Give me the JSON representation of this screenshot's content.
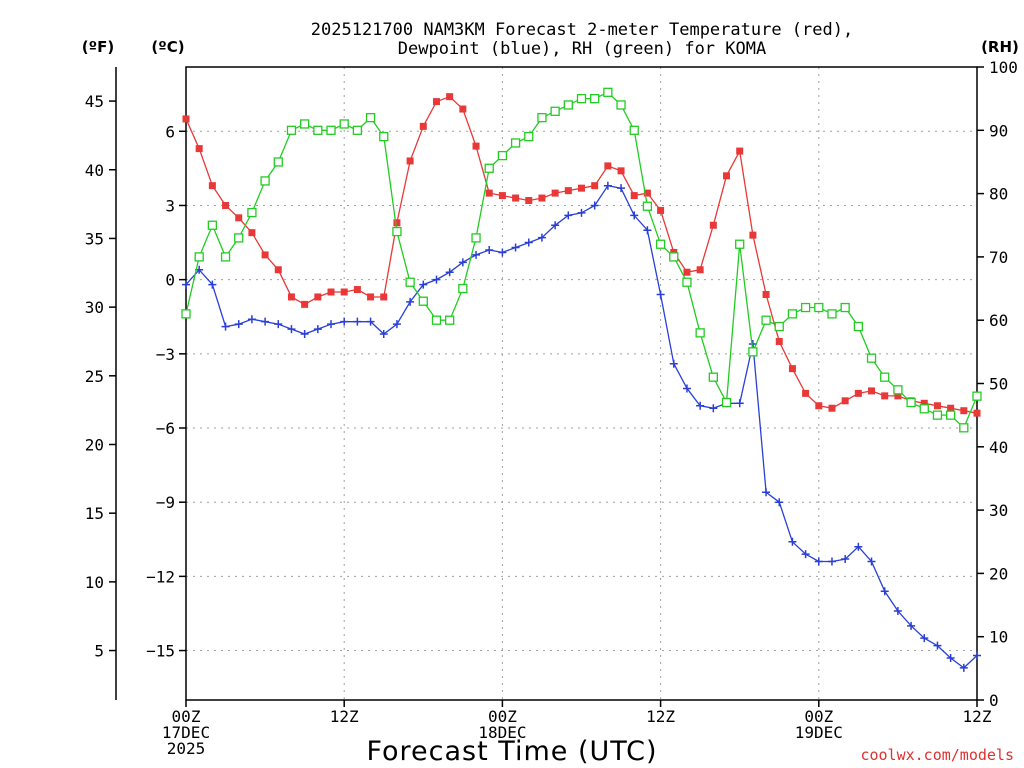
{
  "title_lines": [
    "2025121700 NAM3KM Forecast 2-meter Temperature (red),",
    "Dewpoint (blue), RH (green) for KOMA"
  ],
  "units": {
    "fahrenheit": "(ºF)",
    "celsius": "(ºC)",
    "rh": "(RH)"
  },
  "credit": "coolwx.com/models",
  "colors": {
    "temperature": "#e83838",
    "dewpoint": "#2a3fd6",
    "rh": "#22cc22"
  },
  "chart_data": {
    "type": "line",
    "title": "2025121700 NAM3KM Forecast 2-meter Temperature (red), Dewpoint (blue), RH (green) for KOMA",
    "xlabel": "Forecast Time (UTC)",
    "x_unit": "forecast hour from 2025-12-17 00Z",
    "xlim": [
      0,
      60
    ],
    "x_ticks": [
      {
        "x": 0,
        "lines": [
          "00Z",
          "17DEC",
          "2025"
        ]
      },
      {
        "x": 12,
        "lines": [
          "12Z"
        ]
      },
      {
        "x": 24,
        "lines": [
          "00Z",
          "18DEC"
        ]
      },
      {
        "x": 36,
        "lines": [
          "12Z"
        ]
      },
      {
        "x": 48,
        "lines": [
          "00Z",
          "19DEC"
        ]
      },
      {
        "x": 60,
        "lines": [
          "12Z"
        ]
      }
    ],
    "y_celsius": {
      "lim": [
        -17,
        8.6
      ],
      "ticks": [
        6,
        3,
        0,
        -3,
        -6,
        -9,
        -12,
        -15
      ],
      "tick_labels": [
        "6",
        "3",
        "0",
        "−3",
        "−6",
        "−9",
        "−12",
        "−15"
      ]
    },
    "y_fahrenheit": {
      "ticks": [
        45,
        40,
        35,
        30,
        25,
        20,
        15,
        10,
        5
      ],
      "tick_labels": [
        "45",
        "40",
        "35",
        "30",
        "25",
        "20",
        "15",
        "10",
        "5"
      ]
    },
    "y_rh": {
      "lim": [
        0,
        100
      ],
      "ticks": [
        100,
        90,
        80,
        70,
        60,
        50,
        40,
        30,
        20,
        10,
        0
      ],
      "tick_labels": [
        "100",
        "90",
        "80",
        "70",
        "60",
        "50",
        "40",
        "30",
        "20",
        "10",
        "0"
      ]
    },
    "grid": true,
    "series": [
      {
        "name": "Temperature",
        "axis": "celsius",
        "marker": "filled-square",
        "color": "#e83838",
        "x": [
          0,
          1,
          2,
          3,
          4,
          5,
          6,
          7,
          8,
          9,
          10,
          11,
          12,
          13,
          14,
          15,
          16,
          17,
          18,
          19,
          20,
          21,
          22,
          23,
          24,
          25,
          26,
          27,
          28,
          29,
          30,
          31,
          32,
          33,
          34,
          35,
          36,
          37,
          38,
          39,
          40,
          41,
          42,
          43,
          44,
          45,
          46,
          47,
          48,
          49,
          50,
          51,
          52,
          53,
          54,
          55,
          56,
          57,
          58,
          59,
          60
        ],
        "y": [
          6.5,
          5.3,
          3.8,
          3.0,
          2.5,
          1.9,
          1.0,
          0.4,
          -0.7,
          -1.0,
          -0.7,
          -0.5,
          -0.5,
          -0.4,
          -0.7,
          -0.7,
          2.3,
          4.8,
          6.2,
          7.2,
          7.4,
          6.9,
          5.4,
          3.5,
          3.4,
          3.3,
          3.2,
          3.3,
          3.5,
          3.6,
          3.7,
          3.8,
          4.6,
          4.4,
          3.4,
          3.5,
          2.8,
          1.1,
          0.3,
          0.4,
          2.2,
          4.2,
          5.2,
          1.8,
          -0.6,
          -2.5,
          -3.6,
          -4.6,
          -5.1,
          -5.2,
          -4.9,
          -4.6,
          -4.5,
          -4.7,
          -4.7,
          -4.9,
          -5.0,
          -5.1,
          -5.2,
          -5.3,
          -5.4
        ]
      },
      {
        "name": "Dewpoint",
        "axis": "celsius",
        "marker": "plus",
        "color": "#2a3fd6",
        "x": [
          0,
          1,
          2,
          3,
          4,
          5,
          6,
          7,
          8,
          9,
          10,
          11,
          12,
          13,
          14,
          15,
          16,
          17,
          18,
          19,
          20,
          21,
          22,
          23,
          24,
          25,
          26,
          27,
          28,
          29,
          30,
          31,
          32,
          33,
          34,
          35,
          36,
          37,
          38,
          39,
          40,
          41,
          42,
          43,
          44,
          45,
          46,
          47,
          48,
          49,
          50,
          51,
          52,
          53,
          54,
          55,
          56,
          57,
          58,
          59,
          60
        ],
        "y": [
          -0.2,
          0.4,
          -0.2,
          -1.9,
          -1.8,
          -1.6,
          -1.7,
          -1.8,
          -2.0,
          -2.2,
          -2.0,
          -1.8,
          -1.7,
          -1.7,
          -1.7,
          -2.2,
          -1.8,
          -0.9,
          -0.2,
          0.0,
          0.3,
          0.7,
          1.0,
          1.2,
          1.1,
          1.3,
          1.5,
          1.7,
          2.2,
          2.6,
          2.7,
          3.0,
          3.8,
          3.7,
          2.6,
          2.0,
          -0.6,
          -3.4,
          -4.4,
          -5.1,
          -5.2,
          -5.0,
          -5.0,
          -2.6,
          -8.6,
          -9.0,
          -10.6,
          -11.1,
          -11.4,
          -11.4,
          -11.3,
          -10.8,
          -11.4,
          -12.6,
          -13.4,
          -14.0,
          -14.5,
          -14.8,
          -15.3,
          -15.7,
          -15.2
        ]
      },
      {
        "name": "RH",
        "axis": "rh",
        "marker": "open-square",
        "color": "#22cc22",
        "x": [
          0,
          1,
          2,
          3,
          4,
          5,
          6,
          7,
          8,
          9,
          10,
          11,
          12,
          13,
          14,
          15,
          16,
          17,
          18,
          19,
          20,
          21,
          22,
          23,
          24,
          25,
          26,
          27,
          28,
          29,
          30,
          31,
          32,
          33,
          34,
          35,
          36,
          37,
          38,
          39,
          40,
          41,
          42,
          43,
          44,
          45,
          46,
          47,
          48,
          49,
          50,
          51,
          52,
          53,
          54,
          55,
          56,
          57,
          58,
          59,
          60
        ],
        "y": [
          61,
          70,
          75,
          70,
          73,
          77,
          82,
          85,
          90,
          91,
          90,
          90,
          91,
          90,
          92,
          89,
          74,
          66,
          63,
          60,
          60,
          65,
          73,
          84,
          86,
          88,
          89,
          92,
          93,
          94,
          95,
          95,
          96,
          94,
          90,
          78,
          72,
          70,
          66,
          58,
          51,
          47,
          72,
          55,
          60,
          59,
          61,
          62,
          62,
          61,
          62,
          59,
          54,
          51,
          49,
          47,
          46,
          45,
          45,
          43,
          48
        ]
      }
    ]
  }
}
